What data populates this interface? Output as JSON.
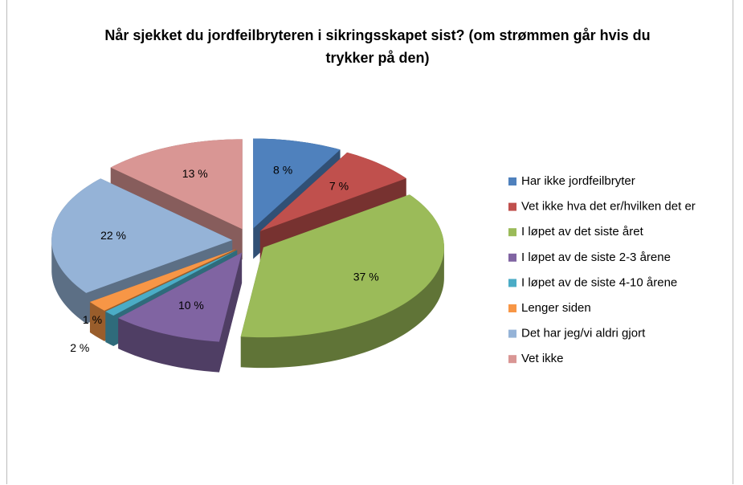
{
  "chart_data": {
    "type": "pie3d",
    "title": "Når sjekket du jordfeilbryteren i sikringsskapet sist? (om strømmen går hvis du trykker på den)",
    "categories": [
      "Har ikke jordfeilbryter",
      "Vet ikke hva det er/hvilken det er",
      "I løpet av det siste året",
      "I løpet av de siste 2-3 årene",
      "I løpet av de siste 4-10 årene",
      "Lenger siden",
      "Det har jeg/vi aldri gjort",
      "Vet ikke"
    ],
    "values": [
      8,
      7,
      37,
      10,
      1,
      2,
      22,
      13
    ],
    "value_labels": [
      "8 %",
      "7 %",
      "37 %",
      "10 %",
      "1 %",
      "2 %",
      "22 %",
      "13 %"
    ],
    "colors": [
      "#4f81bd",
      "#c0504d",
      "#9bbb59",
      "#8064a2",
      "#4bacc6",
      "#f79646",
      "#95b3d7",
      "#d99694"
    ],
    "legend": "right"
  }
}
